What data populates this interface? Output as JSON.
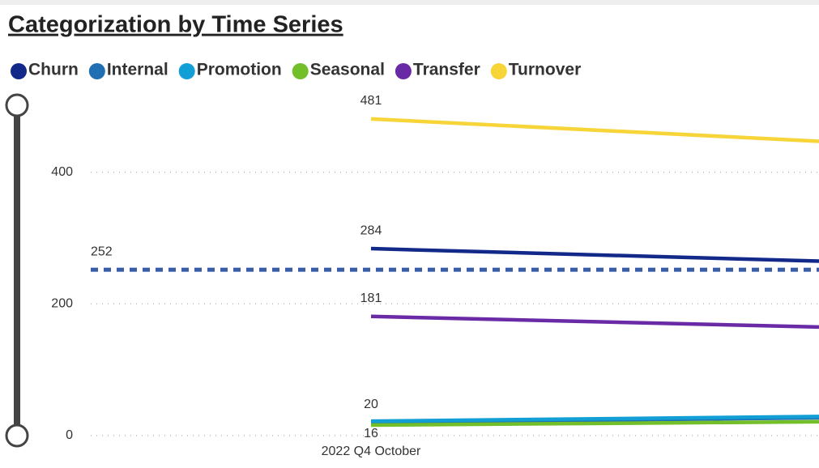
{
  "chart_data": {
    "type": "line",
    "title": "Categorization by Time Series",
    "categories": [
      "2022 Q4 October",
      null
    ],
    "series": [
      {
        "name": "Churn",
        "color": "#12298a",
        "values": [
          284,
          265
        ],
        "value_labels": [
          "284",
          null
        ]
      },
      {
        "name": "Internal",
        "color": "#1f6fb2",
        "values": [
          20,
          27
        ],
        "value_labels": [
          "20",
          null
        ]
      },
      {
        "name": "Promotion",
        "color": "#129fd6",
        "values": [
          22,
          29
        ],
        "value_labels": [
          null,
          null
        ]
      },
      {
        "name": "Seasonal",
        "color": "#72bf2a",
        "values": [
          16,
          21
        ],
        "value_labels": [
          "16",
          null
        ]
      },
      {
        "name": "Transfer",
        "color": "#6a2aa5",
        "values": [
          181,
          165
        ],
        "value_labels": [
          "181",
          null
        ]
      },
      {
        "name": "Turnover",
        "color": "#f7d438",
        "values": [
          481,
          447
        ],
        "value_labels": [
          "481",
          null
        ]
      }
    ],
    "reference_line": {
      "value": 252,
      "color": "#3a5ba8"
    },
    "ylim": [
      0,
      514
    ],
    "yticks": [
      0,
      200,
      400
    ],
    "grid": true
  }
}
